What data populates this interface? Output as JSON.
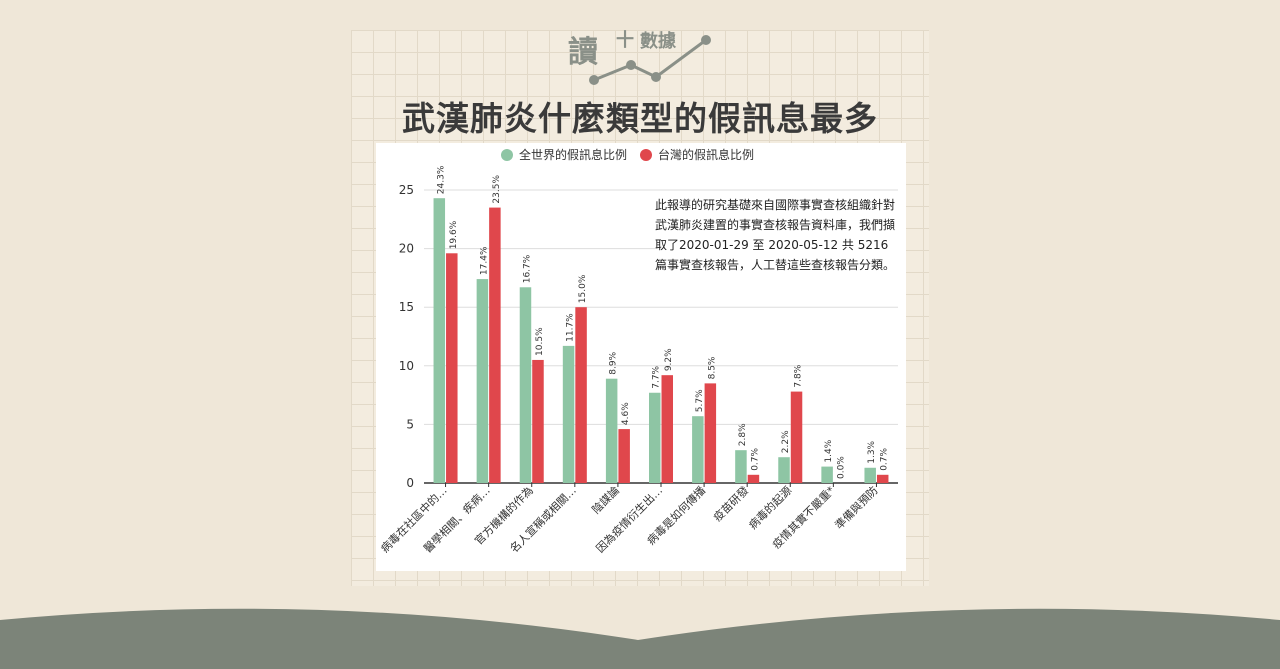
{
  "brand": {
    "logo_main": "讀",
    "logo_plus": "十",
    "logo_sub": "數據"
  },
  "page": {
    "title": "武漢肺炎什麼類型的假訊息最多"
  },
  "note": "此報導的研究基礎來自國際事實查核組織針對武漢肺炎建置的事實查核報告資料庫，我們擷取了2020-01-29 至 2020-05-12 共 5216 篇事實查核報告，人工替這些查核報告分類。",
  "colors": {
    "world": "#8ec5a4",
    "taiwan": "#e0474c",
    "accent": "#8a9088",
    "panel": "#ffffff"
  },
  "chart_data": {
    "type": "bar",
    "categories": [
      "病毒在社區中的…",
      "醫學相關、疾病…",
      "官方機構的作為",
      "名人宣稱或相關…",
      "陰謀論",
      "因為疫情衍生出…",
      "病毒是如何傳播",
      "疫苗研發",
      "病毒的起源",
      "疫情其實不嚴重*",
      "準備與預防"
    ],
    "series": [
      {
        "name": "全世界的假訊息比例",
        "values": [
          24.3,
          17.4,
          16.7,
          11.7,
          8.9,
          7.7,
          5.7,
          2.8,
          2.2,
          1.4,
          1.3
        ],
        "labels": [
          "24.3%",
          "17.4%",
          "16.7%",
          "11.7%",
          "8.9%",
          "7.7%",
          "5.7%",
          "2.8%",
          "2.2%",
          "1.4%",
          "1.3%"
        ]
      },
      {
        "name": "台灣的假訊息比例",
        "values": [
          19.6,
          23.5,
          10.5,
          15.0,
          4.6,
          9.2,
          8.5,
          0.7,
          7.8,
          0.0,
          0.7
        ],
        "labels": [
          "19.6%",
          "23.5%",
          "10.5%",
          "15.0%",
          "4.6%",
          "9.2%",
          "8.5%",
          "0.7%",
          "7.8%",
          "0.0%",
          "0.7%"
        ]
      }
    ],
    "yticks": [
      "0",
      "5",
      "10",
      "15",
      "20",
      "25"
    ],
    "ylim": [
      0,
      25
    ],
    "grid": true,
    "legend_position": "top"
  }
}
